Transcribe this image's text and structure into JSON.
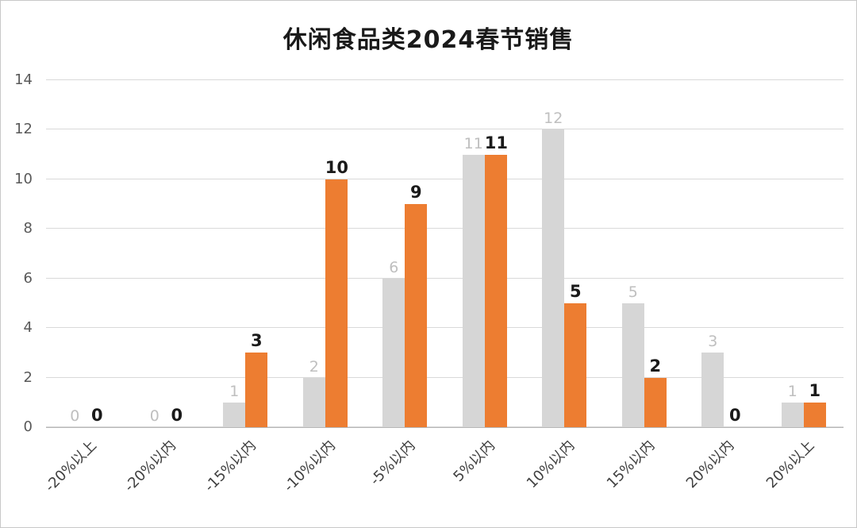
{
  "chart_data": {
    "type": "bar",
    "title": "休闲食品类2024春节销售",
    "categories": [
      "-20%以上",
      "-20%以内",
      "-15%以内",
      "-10%以内",
      "-5%以内",
      "5%以内",
      "10%以内",
      "15%以内",
      "20%以内",
      "20%以上"
    ],
    "series": [
      {
        "name": "series-gray",
        "color": "#d6d6d6",
        "label_color": "#bfbfbf",
        "values": [
          0,
          0,
          1,
          2,
          6,
          11,
          12,
          5,
          3,
          1
        ]
      },
      {
        "name": "series-orange",
        "color": "#ed7d31",
        "label_color": "#1a1a1a",
        "values": [
          0,
          0,
          3,
          10,
          9,
          11,
          5,
          2,
          0,
          1
        ]
      }
    ],
    "ylim": [
      0,
      14
    ],
    "ytick_step": 2,
    "yticks": [
      0,
      2,
      4,
      6,
      8,
      10,
      12,
      14
    ],
    "grid": true,
    "legend": "none",
    "xlabel": "",
    "ylabel": ""
  }
}
